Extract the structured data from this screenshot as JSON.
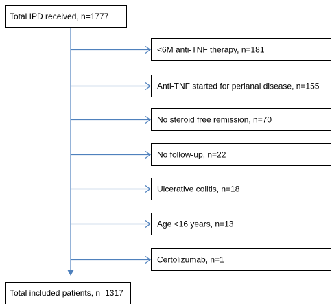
{
  "start": {
    "label": "Total IPD received, n=1777"
  },
  "exclusions": [
    {
      "label": "<6M anti-TNF therapy, n=181"
    },
    {
      "label": "Anti-TNF started for perianal disease, n=155"
    },
    {
      "label": "No steroid free remission, n=70"
    },
    {
      "label": "No follow-up, n=22"
    },
    {
      "label": "Ulcerative colitis, n=18"
    },
    {
      "label": "Age <16 years, n=13"
    },
    {
      "label": "Certolizumab, n=1"
    }
  ],
  "end": {
    "label": "Total included patients, n=1317"
  }
}
